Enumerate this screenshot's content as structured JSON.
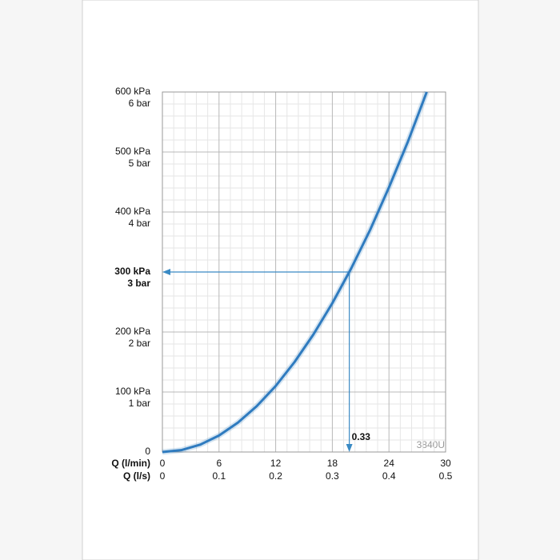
{
  "chart_data": {
    "type": "line",
    "x": [
      0,
      2,
      4,
      6,
      8,
      10,
      12,
      14,
      16,
      18,
      20,
      22,
      24,
      26,
      28
    ],
    "series": [
      {
        "name": "3840U",
        "color": "#2f7bbf",
        "values": [
          0,
          3.1,
          12.2,
          27.5,
          49,
          76.5,
          110,
          150,
          196,
          248,
          306,
          370,
          441,
          517,
          600
        ]
      }
    ],
    "xlim": [
      0,
      30
    ],
    "xticks": [
      0,
      6,
      12,
      18,
      24,
      30
    ],
    "xticks_secondary": [
      {
        "value": 0,
        "label": "0"
      },
      {
        "value": 6,
        "label": "0.1"
      },
      {
        "value": 12,
        "label": "0.2"
      },
      {
        "value": 18,
        "label": "0.3"
      },
      {
        "value": 24,
        "label": "0.4"
      },
      {
        "value": 30,
        "label": "0.5"
      }
    ],
    "xlabel": "Q (l/min)",
    "xlabel_secondary": "Q (l/s)",
    "ylim": [
      0,
      600
    ],
    "yticks": [
      0,
      {
        "value": 100,
        "label": "100 kPa"
      },
      {
        "value": 200,
        "label": "200 kPa"
      },
      {
        "value": 300,
        "label": "300 kPa"
      },
      {
        "value": 400,
        "label": "400 kPa"
      },
      {
        "value": 500,
        "label": "500 kPa"
      },
      {
        "value": 600,
        "label": "600 kPa"
      }
    ],
    "yticks_secondary": [
      {
        "value": 100,
        "label": "1 bar"
      },
      {
        "value": 200,
        "label": "2 bar"
      },
      {
        "value": 300,
        "label": "3 bar"
      },
      {
        "value": 400,
        "label": "4 bar"
      },
      {
        "value": 500,
        "label": "5 bar"
      },
      {
        "value": 600,
        "label": "6 bar"
      }
    ],
    "highlight_ytick_index": 3,
    "reference_point": {
      "x": 19.8,
      "y": 300,
      "label": "0.33"
    },
    "grid": true,
    "minor_grid_divisions": 5,
    "arrow_color": "#3a8ac4"
  }
}
